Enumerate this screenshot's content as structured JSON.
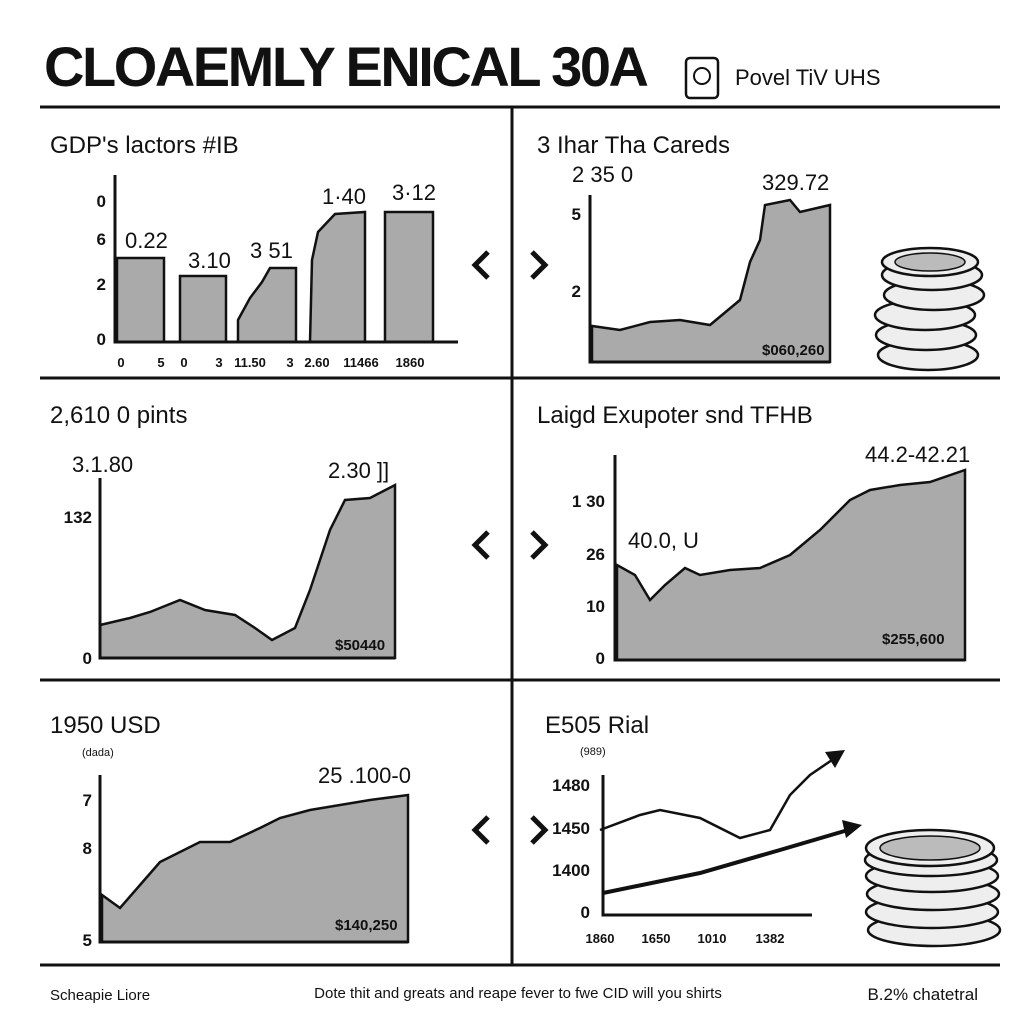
{
  "header": {
    "title": "CLOAEMLY ENICAL 30A",
    "subtitle": "Povel TiV UHS"
  },
  "panels": [
    {
      "title": "GDP's lactors #IB",
      "annotations": [
        "0.22",
        "3.10",
        "3 51",
        "1·40",
        "3·12"
      ],
      "y_labels": [
        "0",
        "6",
        "2",
        "0"
      ],
      "x_labels": [
        "0",
        "5",
        "0",
        "3",
        "11.50",
        "3",
        "2.60",
        "11466",
        "1860"
      ]
    },
    {
      "title": "3 Ihar Tha Careds",
      "annotations": [
        "2 35 0",
        "329.72",
        "$060,260"
      ],
      "y_labels": [
        "5",
        "2"
      ]
    },
    {
      "title": "2,610 0 pints",
      "annotations": [
        "3.1.80",
        "2.30 ]]",
        "$50440"
      ],
      "y_labels": [
        "132",
        "0"
      ]
    },
    {
      "title": "Laigd Exupoter snd TFHB",
      "annotations": [
        "44.2-42.21",
        "40.0, U",
        "$255,600"
      ],
      "y_labels": [
        "1 30",
        "26",
        "10",
        "0"
      ]
    },
    {
      "title": "1950 USD",
      "annotations": [
        "(dada)",
        "25 .100-0",
        "$140,250"
      ],
      "y_labels": [
        "7",
        "8",
        "5"
      ]
    },
    {
      "title": "E505 Rial",
      "annotations": [
        "(989)"
      ],
      "y_labels": [
        "1480",
        "1450",
        "1400",
        "0"
      ],
      "x_labels": [
        "1860",
        "1650",
        "1010",
        "1382"
      ]
    }
  ],
  "footer": {
    "left": "Scheapie Liore",
    "center": "Dote thit and greats and reape fever to fwe CID will you shirts",
    "right": "B.2% chatetral"
  }
}
